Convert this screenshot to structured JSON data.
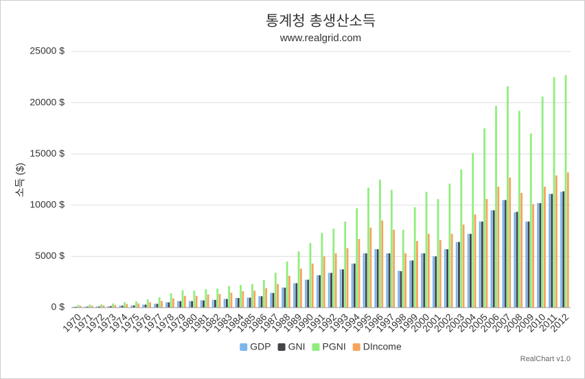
{
  "chart_data": {
    "type": "bar",
    "title": "통계청 총생산소득",
    "subtitle": "www.realgrid.com",
    "y_label": "소득 ($)",
    "credit": "RealChart v1.0",
    "categories": [
      "1970",
      "1971",
      "1972",
      "1973",
      "1974",
      "1975",
      "1976",
      "1977",
      "1978",
      "1979",
      "1980",
      "1981",
      "1982",
      "1983",
      "1984",
      "1985",
      "1986",
      "1987",
      "1988",
      "1989",
      "1990",
      "1991",
      "1992",
      "1993",
      "1994",
      "1995",
      "1996",
      "1997",
      "1998",
      "1999",
      "2000",
      "2001",
      "2002",
      "2003",
      "2004",
      "2005",
      "2006",
      "2007",
      "2008",
      "2009",
      "2010",
      "2011",
      "2012"
    ],
    "series": [
      {
        "name": "GDP",
        "color": "#7cb5ec",
        "values": [
          80,
          95,
          110,
          140,
          190,
          210,
          290,
          370,
          520,
          640,
          640,
          720,
          770,
          850,
          940,
          980,
          1120,
          1440,
          1960,
          2380,
          2720,
          3160,
          3390,
          3730,
          4300,
          5300,
          5700,
          5300,
          3600,
          4600,
          5300,
          5000,
          5700,
          6400,
          7200,
          8400,
          9500,
          10500,
          9300,
          8400,
          10200,
          11100,
          11300
        ]
      },
      {
        "name": "GNI",
        "color": "#434348",
        "values": [
          80,
          95,
          110,
          140,
          190,
          210,
          290,
          370,
          510,
          630,
          630,
          700,
          750,
          840,
          930,
          970,
          1110,
          1430,
          1950,
          2380,
          2720,
          3160,
          3390,
          3730,
          4300,
          5300,
          5700,
          5300,
          3550,
          4600,
          5300,
          5000,
          5700,
          6400,
          7200,
          8400,
          9500,
          10500,
          9350,
          8400,
          10200,
          11100,
          11350
        ]
      },
      {
        "name": "PGNI",
        "color": "#90ed7d",
        "values": [
          250,
          290,
          320,
          400,
          540,
          610,
          800,
          1000,
          1400,
          1700,
          1650,
          1800,
          1850,
          2100,
          2200,
          2300,
          2700,
          3400,
          4500,
          5500,
          6300,
          7300,
          7700,
          8400,
          9700,
          11700,
          12500,
          11500,
          7600,
          9800,
          11300,
          10600,
          12100,
          13500,
          15100,
          17500,
          19700,
          21600,
          19200,
          17000,
          20600,
          22500,
          22700
        ]
      },
      {
        "name": "DIncome",
        "color": "#f7a35c",
        "values": [
          170,
          190,
          210,
          260,
          350,
          400,
          520,
          650,
          900,
          1150,
          1150,
          1280,
          1320,
          1450,
          1600,
          1650,
          1900,
          2300,
          3100,
          3800,
          4300,
          5000,
          5300,
          5800,
          6700,
          7800,
          8500,
          7600,
          5300,
          6500,
          7200,
          6600,
          7200,
          8100,
          9100,
          10600,
          11800,
          12700,
          11200,
          10100,
          11800,
          12900,
          13200
        ]
      }
    ],
    "ylim": [
      0,
      25000
    ],
    "yticks": [
      {
        "value": 0,
        "label": "0 $"
      },
      {
        "value": 5000,
        "label": "5000 $"
      },
      {
        "value": 10000,
        "label": "10000 $"
      },
      {
        "value": 15000,
        "label": "15000 $"
      },
      {
        "value": 20000,
        "label": "20000 $"
      },
      {
        "value": 25000,
        "label": "25000 $"
      }
    ],
    "grid": true,
    "legend": "bottom"
  }
}
